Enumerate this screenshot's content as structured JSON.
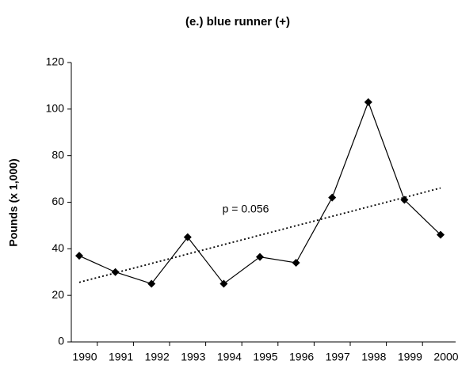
{
  "chart_data": {
    "type": "line",
    "title": "(e.) blue runner (+)",
    "y_label": "Pounds (x 1,000)",
    "categories": [
      "1990",
      "1991",
      "1992",
      "1993",
      "1994",
      "1995",
      "1996",
      "1997",
      "1998",
      "1999",
      "2000"
    ],
    "series": [
      {
        "name": "blue runner",
        "color": "#000000",
        "values": [
          37,
          30,
          25,
          45,
          25,
          36.5,
          34,
          62,
          103,
          61,
          46
        ]
      }
    ],
    "trendline": {
      "values": [
        25.6,
        66.1
      ]
    },
    "annotation": "p = 0.056",
    "ylim": [
      0,
      120
    ],
    "yticks": [
      0,
      20,
      40,
      60,
      80,
      100,
      120
    ],
    "grid": false
  }
}
